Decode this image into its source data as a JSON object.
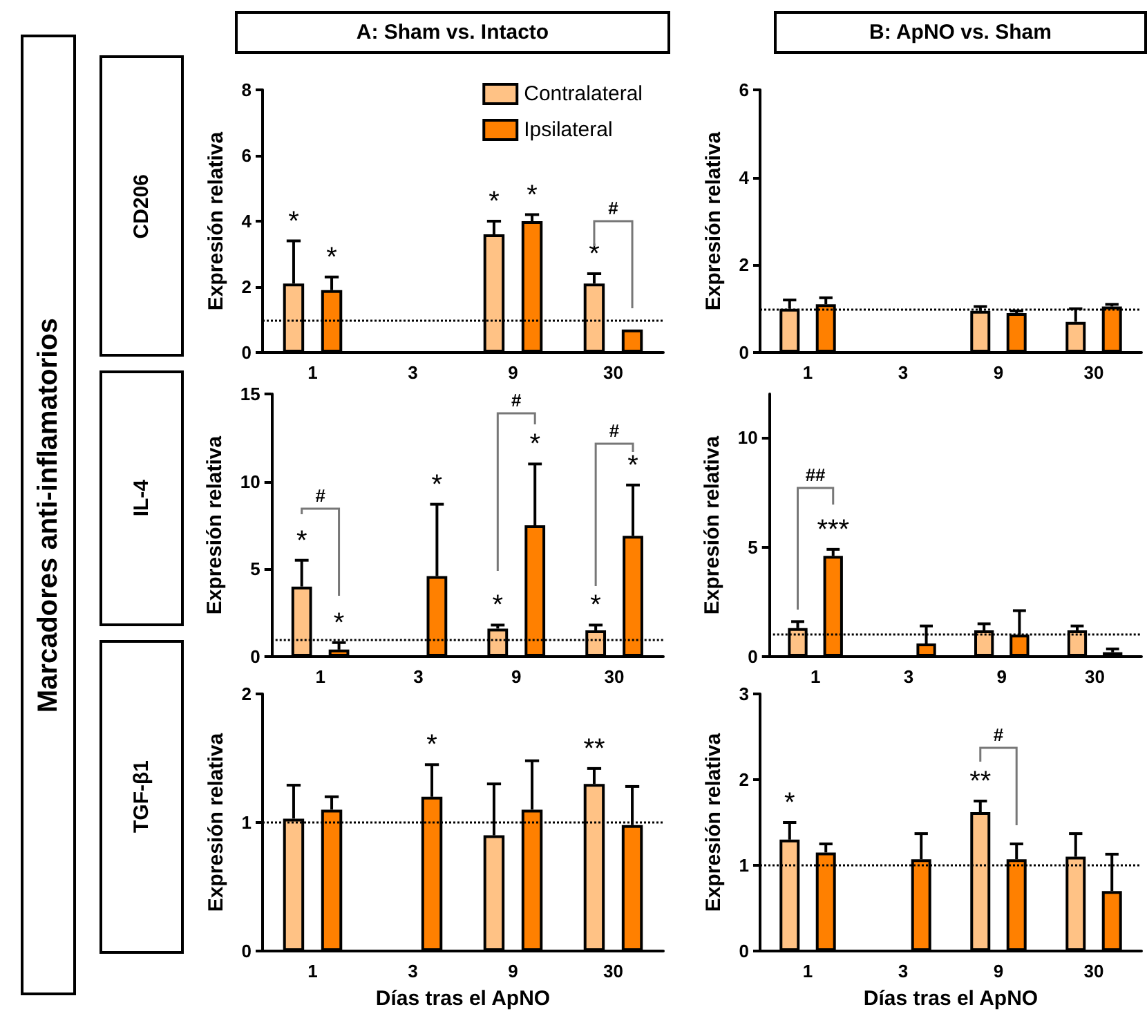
{
  "chart_data": [
    {
      "type": "bar",
      "title": "A: Sham vs. Intacto",
      "ylabel": "Expresión relativa",
      "categories": [
        "1",
        "3",
        "9",
        "30"
      ],
      "ylim": [
        0,
        8
      ],
      "yticks": [
        0,
        2,
        4,
        6,
        8
      ],
      "legend": "top right",
      "series": [
        {
          "name": "Contralateral",
          "color": "#ffc285",
          "values": [
            2.1,
            null,
            3.6,
            2.1
          ],
          "errors": [
            1.3,
            null,
            0.4,
            0.3
          ],
          "value_labels": [
            "*",
            null,
            "*",
            "*"
          ]
        },
        {
          "name": "Ipsilateral",
          "color": "#ff8000",
          "values": [
            1.9,
            null,
            4.0,
            0.7
          ],
          "errors": [
            0.4,
            null,
            0.2,
            null
          ],
          "value_labels": [
            "*",
            null,
            "*",
            null
          ]
        }
      ],
      "ref_lines": [
        {
          "axis": "y",
          "value": 1,
          "line_style": "dotted",
          "color": "#000000"
        }
      ],
      "annotations": [
        "Marcadores anti-inflamatorios",
        "CD206",
        "#"
      ]
    },
    {
      "type": "bar",
      "title": "B: ApNO vs. Sham",
      "ylabel": "Expresión relativa",
      "categories": [
        "1",
        "3",
        "9",
        "30"
      ],
      "ylim": [
        0,
        6
      ],
      "yticks": [
        0,
        2,
        4,
        6
      ],
      "series": [
        {
          "color": "#ffc285",
          "values": [
            1.0,
            null,
            0.95,
            0.7
          ],
          "errors": [
            0.2,
            null,
            0.1,
            0.3
          ]
        },
        {
          "color": "#ff8000",
          "values": [
            1.1,
            null,
            0.9,
            1.05
          ],
          "errors": [
            0.15,
            null,
            0.05,
            0.05
          ]
        }
      ],
      "ref_lines": [
        {
          "axis": "y",
          "value": 1,
          "line_style": "dotted",
          "color": "#000000"
        }
      ]
    },
    {
      "type": "bar",
      "ylabel": "Expresión relativa",
      "categories": [
        "1",
        "3",
        "9",
        "30"
      ],
      "ylim": [
        0,
        15
      ],
      "yticks": [
        0,
        5,
        10,
        15
      ],
      "series": [
        {
          "color": "#ffc285",
          "values": [
            4.0,
            null,
            1.6,
            1.5
          ],
          "errors": [
            1.5,
            null,
            0.2,
            0.3
          ],
          "value_labels": [
            "*",
            null,
            "*",
            "*"
          ]
        },
        {
          "color": "#ff8000",
          "values": [
            0.4,
            4.6,
            7.5,
            6.9
          ],
          "errors": [
            0.4,
            4.1,
            3.5,
            2.9
          ],
          "value_labels": [
            "*",
            "*",
            "*",
            "*"
          ]
        }
      ],
      "ref_lines": [
        {
          "axis": "y",
          "value": 1,
          "line_style": "dotted",
          "color": "#000000"
        }
      ],
      "annotations": [
        "IL-4",
        "#",
        "#",
        "#"
      ]
    },
    {
      "type": "bar",
      "ylabel": "Expresión relativa",
      "categories": [
        "1",
        "3",
        "9",
        "30"
      ],
      "ylim": [
        0,
        12
      ],
      "yticks": [
        0,
        5,
        10
      ],
      "series": [
        {
          "color": "#ffc285",
          "values": [
            1.3,
            null,
            1.2,
            1.2
          ],
          "errors": [
            0.3,
            null,
            0.3,
            0.2
          ]
        },
        {
          "color": "#ff8000",
          "values": [
            4.6,
            0.6,
            1.0,
            0.2
          ],
          "errors": [
            0.3,
            0.8,
            1.1,
            0.15
          ],
          "value_labels": [
            "***",
            null,
            null,
            null
          ]
        }
      ],
      "ref_lines": [
        {
          "axis": "y",
          "value": 1,
          "line_style": "dotted",
          "color": "#000000"
        }
      ],
      "annotations": [
        "##"
      ]
    },
    {
      "type": "bar",
      "ylabel": "Expresión relativa",
      "xlabel": "Días tras el ApNO",
      "categories": [
        "1",
        "3",
        "9",
        "30"
      ],
      "ylim": [
        0,
        2
      ],
      "yticks": [
        0,
        1,
        2
      ],
      "series": [
        {
          "color": "#ffc285",
          "values": [
            1.03,
            null,
            0.9,
            1.3
          ],
          "errors": [
            0.26,
            null,
            0.4,
            0.12
          ],
          "value_labels": [
            null,
            null,
            null,
            "**"
          ]
        },
        {
          "color": "#ff8000",
          "values": [
            1.1,
            1.2,
            1.1,
            0.98
          ],
          "errors": [
            0.1,
            0.25,
            0.38,
            0.3
          ],
          "value_labels": [
            null,
            "*",
            null,
            null
          ]
        }
      ],
      "ref_lines": [
        {
          "axis": "y",
          "value": 1,
          "line_style": "dotted",
          "color": "#000000"
        }
      ],
      "annotations": [
        "TGF-β1"
      ]
    },
    {
      "type": "bar",
      "ylabel": "Expresión relativa",
      "xlabel": "Días tras el ApNO",
      "categories": [
        "1",
        "3",
        "9",
        "30"
      ],
      "ylim": [
        0,
        3
      ],
      "yticks": [
        0,
        1,
        2,
        3
      ],
      "series": [
        {
          "color": "#ffc285",
          "values": [
            1.3,
            null,
            1.62,
            1.1
          ],
          "errors": [
            0.2,
            null,
            0.13,
            0.27
          ],
          "value_labels": [
            "*",
            null,
            "**",
            null
          ]
        },
        {
          "color": "#ff8000",
          "values": [
            1.15,
            1.07,
            1.07,
            0.7
          ],
          "errors": [
            0.1,
            0.3,
            0.18,
            0.43
          ]
        }
      ],
      "ref_lines": [
        {
          "axis": "y",
          "value": 1,
          "line_style": "dotted",
          "color": "#000000"
        }
      ],
      "annotations": [
        "#"
      ]
    }
  ]
}
